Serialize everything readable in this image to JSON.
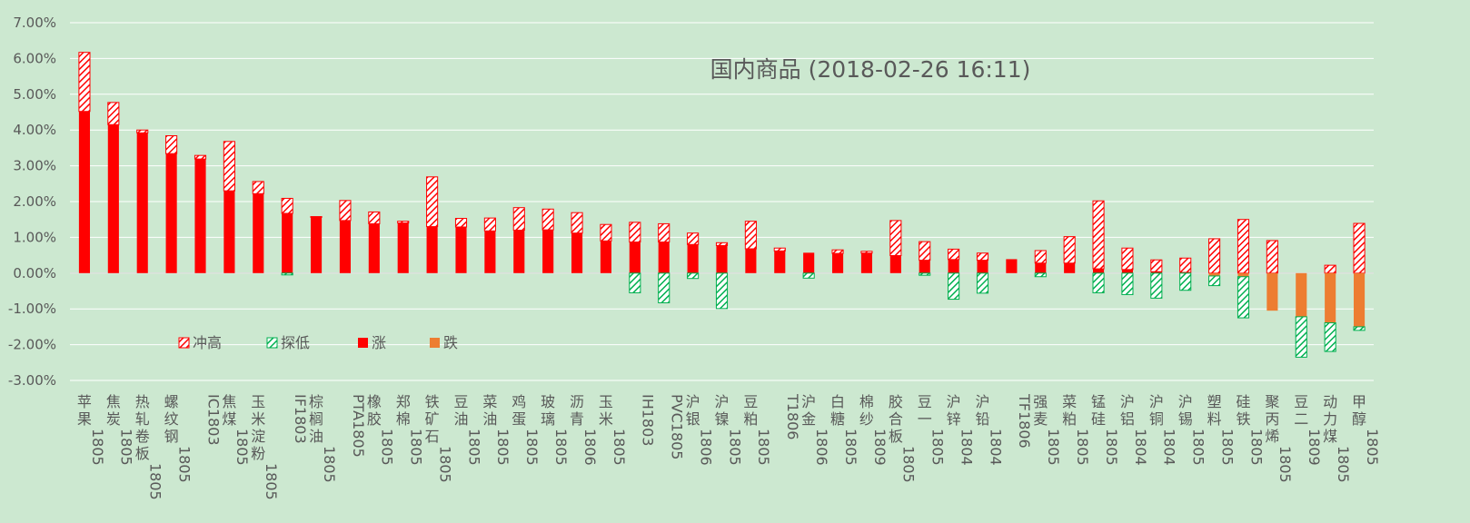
{
  "chart_data": {
    "type": "bar",
    "title": "国内商品 (2018-02-26 16:11)",
    "ylim": [
      -3,
      7
    ],
    "y_ticks": [
      7,
      6,
      5,
      4,
      3,
      2,
      1,
      0,
      -1,
      -2,
      -3
    ],
    "y_tick_labels": [
      "7.00%",
      "6.00%",
      "5.00%",
      "4.00%",
      "3.00%",
      "2.00%",
      "1.00%",
      "0.00%",
      "-1.00%",
      "-2.00%",
      "-3.00%"
    ],
    "grid": true,
    "legend_placement": "lower-left",
    "colors": {
      "background": "#cce8d0",
      "rise": "#ff0000",
      "fall": "#ed7d31",
      "spike_high": "#ff0000",
      "dip_low": "#00b050",
      "text": "#595959"
    },
    "legend": [
      {
        "key": "high",
        "label": "冲高"
      },
      {
        "key": "low",
        "label": "探低"
      },
      {
        "key": "up",
        "label": "涨"
      },
      {
        "key": "down",
        "label": "跌"
      }
    ],
    "categories": [
      "苹果1805",
      "焦炭1805",
      "热轧卷板1805",
      "螺纹钢1805",
      "IC1803",
      "焦煤1805",
      "玉米淀粉1805",
      "IF1803",
      "棕榈油1805",
      "PTA1805",
      "橡胶1805",
      "郑棉1805",
      "铁矿石1805",
      "豆油1805",
      "菜油1805",
      "鸡蛋1805",
      "玻璃1805",
      "沥青1806",
      "玉米1805",
      "IH1803",
      "PVC1805",
      "沪银1806",
      "沪镍1805",
      "豆粕1805",
      "T1806",
      "沪金1806",
      "白糖1805",
      "棉纱1809",
      "胶合板1805",
      "豆一1805",
      "沪锌1804",
      "沪铅1804",
      "TF1806",
      "强麦1805",
      "菜粕1805",
      "锰硅1805",
      "沪铝1804",
      "沪铜1804",
      "沪锡1805",
      "塑料1805",
      "硅铁1805",
      "聚丙烯1805",
      "豆二1809",
      "动力煤1805",
      "甲醇1805"
    ],
    "category_lines": [
      [
        "苹",
        "果",
        "1805"
      ],
      [
        "焦",
        "炭",
        "1805"
      ],
      [
        "热",
        "轧",
        "卷",
        "板",
        "1805"
      ],
      [
        "螺",
        "纹",
        "钢",
        "1805"
      ],
      [
        "IC1803"
      ],
      [
        "焦",
        "煤",
        "1805"
      ],
      [
        "玉",
        "米",
        "淀",
        "粉",
        "1805"
      ],
      [
        "IF1803"
      ],
      [
        "棕",
        "榈",
        "油",
        "1805"
      ],
      [
        "PTA1805"
      ],
      [
        "橡",
        "胶",
        "1805"
      ],
      [
        "郑",
        "棉",
        "1805"
      ],
      [
        "铁",
        "矿",
        "石",
        "1805"
      ],
      [
        "豆",
        "油",
        "1805"
      ],
      [
        "菜",
        "油",
        "1805"
      ],
      [
        "鸡",
        "蛋",
        "1805"
      ],
      [
        "玻",
        "璃",
        "1805"
      ],
      [
        "沥",
        "青",
        "1806"
      ],
      [
        "玉",
        "米",
        "1805"
      ],
      [
        "IH1803"
      ],
      [
        "PVC1805"
      ],
      [
        "沪",
        "银",
        "1806"
      ],
      [
        "沪",
        "镍",
        "1805"
      ],
      [
        "豆",
        "粕",
        "1805"
      ],
      [
        "T1806"
      ],
      [
        "沪",
        "金",
        "1806"
      ],
      [
        "白",
        "糖",
        "1805"
      ],
      [
        "棉",
        "纱",
        "1809"
      ],
      [
        "胶",
        "合",
        "板",
        "1805"
      ],
      [
        "豆",
        "一",
        "1805"
      ],
      [
        "沪",
        "锌",
        "1804"
      ],
      [
        "沪",
        "铅",
        "1804"
      ],
      [
        "TF1806"
      ],
      [
        "强",
        "麦",
        "1805"
      ],
      [
        "菜",
        "粕",
        "1805"
      ],
      [
        "锰",
        "硅",
        "1805"
      ],
      [
        "沪",
        "铝",
        "1804"
      ],
      [
        "沪",
        "铜",
        "1804"
      ],
      [
        "沪",
        "锡",
        "1805"
      ],
      [
        "塑",
        "料",
        "1805"
      ],
      [
        "硅",
        "铁",
        "1805"
      ],
      [
        "聚",
        "丙",
        "烯",
        "1805"
      ],
      [
        "豆",
        "二",
        "1809"
      ],
      [
        "动",
        "力",
        "煤",
        "1805"
      ],
      [
        "甲",
        "醇",
        "1805"
      ]
    ],
    "series": [
      {
        "name": "冲高",
        "values": [
          1.65,
          0.62,
          0.08,
          0.5,
          0.1,
          1.38,
          0.34,
          0.42,
          0.02,
          0.56,
          0.33,
          0.05,
          1.39,
          0.24,
          0.36,
          0.63,
          0.58,
          0.57,
          0.46,
          0.55,
          0.51,
          0.32,
          0.08,
          0.77,
          0.08,
          0.0,
          0.1,
          0.05,
          0.98,
          0.52,
          0.29,
          0.2,
          0.0,
          0.35,
          0.74,
          1.9,
          0.6,
          0.33,
          0.4,
          0.96,
          1.5,
          0.91,
          0.0,
          0.22,
          1.39
        ]
      },
      {
        "name": "探低",
        "values": [
          0.0,
          0.0,
          0.0,
          0.0,
          0.0,
          0.0,
          0.0,
          -0.05,
          0.0,
          0.0,
          0.0,
          0.0,
          0.0,
          0.0,
          0.0,
          0.0,
          0.0,
          0.0,
          0.0,
          -0.55,
          -0.83,
          -0.15,
          -0.99,
          0.0,
          0.0,
          -0.14,
          0.0,
          0.0,
          0.0,
          -0.06,
          -0.73,
          -0.56,
          0.0,
          -0.1,
          0.0,
          -0.55,
          -0.6,
          -0.7,
          -0.48,
          -0.27,
          -1.15,
          0.0,
          -1.13,
          -0.8,
          -0.1
        ]
      },
      {
        "name": "涨",
        "values": [
          4.52,
          4.15,
          3.92,
          3.34,
          3.19,
          2.3,
          2.22,
          1.67,
          1.56,
          1.47,
          1.38,
          1.4,
          1.3,
          1.29,
          1.18,
          1.2,
          1.21,
          1.12,
          0.9,
          0.87,
          0.87,
          0.8,
          0.77,
          0.68,
          0.62,
          0.57,
          0.55,
          0.56,
          0.49,
          0.36,
          0.38,
          0.36,
          0.39,
          0.28,
          0.28,
          0.12,
          0.1,
          0.04,
          0.02,
          0.0,
          0.0,
          0.0,
          0.0,
          0.0,
          0.0
        ]
      },
      {
        "name": "跌",
        "values": [
          0.0,
          0.0,
          0.0,
          0.0,
          0.0,
          0.0,
          0.0,
          0.0,
          0.0,
          0.0,
          0.0,
          0.0,
          0.0,
          0.0,
          0.0,
          0.0,
          0.0,
          0.0,
          0.0,
          0.0,
          0.0,
          0.0,
          0.0,
          0.0,
          0.0,
          0.0,
          0.0,
          0.0,
          0.0,
          0.0,
          0.0,
          0.0,
          0.0,
          0.0,
          0.0,
          0.0,
          0.0,
          0.0,
          0.0,
          -0.08,
          -0.1,
          -1.05,
          -1.22,
          -1.39,
          -1.5
        ]
      }
    ]
  }
}
